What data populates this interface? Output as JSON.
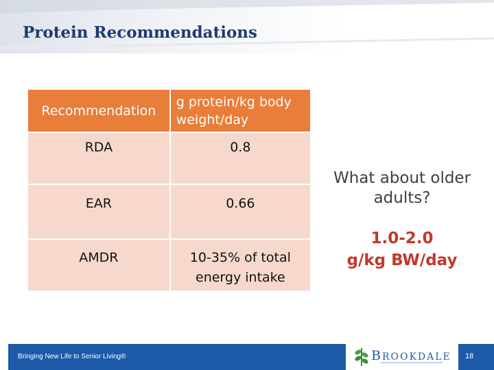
{
  "slide": {
    "title": "Protein Recommendations"
  },
  "table": {
    "header": {
      "col1": "Recommendation",
      "col2_line1": "g protein/kg body",
      "col2_line2": "weight/day"
    },
    "rows": [
      {
        "label": "RDA",
        "value": "0.8"
      },
      {
        "label": "EAR",
        "value": "0.66"
      },
      {
        "label": "AMDR",
        "value_line1": "10-35% of total",
        "value_line2": "energy intake"
      }
    ]
  },
  "sidebar": {
    "question_line1": "What about older",
    "question_line2": "adults?",
    "answer_line1": "1.0-2.0",
    "answer_line2": "g/kg BW/day"
  },
  "footer": {
    "tagline": "Bringing New Life to Senior Living®",
    "logo_initial": "B",
    "logo_rest": "ROOKDALE",
    "page_number": "18"
  },
  "colors": {
    "title": "#1f3a73",
    "table_header": "#e97d3a",
    "table_cell": "#f6d9cc",
    "answer": "#c0392b",
    "footer": "#1d5aa8"
  }
}
